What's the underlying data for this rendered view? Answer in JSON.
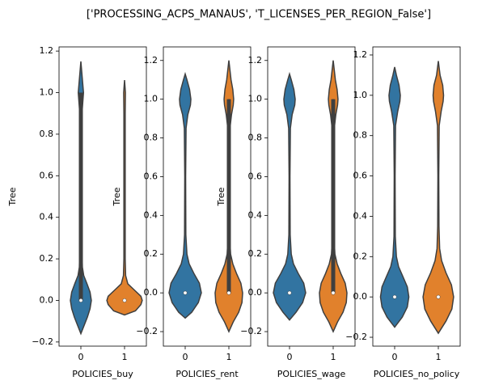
{
  "title": "['PROCESSING_ACPS_MANAUS', 'T_LICENSES_PER_REGION_False']",
  "chart_data": [
    {
      "type": "violin",
      "xlabel": "POLICIES_buy",
      "ylabel": "Tree",
      "categories": [
        "0",
        "1"
      ],
      "ylim": [
        -0.22,
        1.22
      ],
      "yticks": [
        {
          "value": -0.2,
          "label": "−0.2"
        },
        {
          "value": 0,
          "label": "0.0"
        },
        0.2,
        0.4,
        0.6,
        0.8,
        {
          "value": 1,
          "label": "1.0"
        },
        1.2
      ],
      "violins": [
        {
          "color": "#3274a1",
          "median": 0,
          "q1": 0,
          "q3": 1,
          "whisker": [
            0,
            1
          ],
          "y": [
            -0.16,
            -0.12,
            -0.08,
            -0.04,
            0,
            0.04,
            0.08,
            0.12,
            0.16,
            0.25,
            0.5,
            0.9,
            1.0,
            1.05,
            1.1,
            1.15
          ],
          "width": [
            0,
            0.15,
            0.3,
            0.42,
            0.48,
            0.42,
            0.28,
            0.13,
            0.07,
            0.05,
            0.05,
            0.05,
            0.12,
            0.08,
            0.04,
            0
          ]
        },
        {
          "color": "#e1812c",
          "median": 0,
          "q1": 0,
          "q3": 0,
          "whisker": [
            0,
            0
          ],
          "y": [
            -0.07,
            -0.05,
            -0.02,
            0,
            0.02,
            0.05,
            0.08,
            0.12,
            0.2,
            0.5,
            0.9,
            1.0,
            1.06
          ],
          "width": [
            0,
            0.5,
            0.75,
            0.81,
            0.75,
            0.45,
            0.15,
            0.05,
            0.03,
            0.03,
            0.03,
            0.04,
            0
          ]
        }
      ]
    },
    {
      "type": "violin",
      "xlabel": "POLICIES_rent",
      "ylabel": "Tree",
      "categories": [
        "0",
        "1"
      ],
      "ylim": [
        -0.275,
        1.27
      ],
      "yticks": [
        {
          "value": -0.2,
          "label": "−0.2"
        },
        {
          "value": 0,
          "label": "0.0"
        },
        0.2,
        0.4,
        0.6,
        0.8,
        {
          "value": 1,
          "label": "1.0"
        },
        1.2
      ],
      "violins": [
        {
          "color": "#3274a1",
          "median": 0,
          "q1": 0,
          "q3": 0,
          "whisker": [
            0,
            0
          ],
          "y": [
            -0.13,
            -0.1,
            -0.05,
            0,
            0.05,
            0.1,
            0.15,
            0.2,
            0.3,
            0.6,
            0.85,
            0.92,
            0.97,
            1.0,
            1.05,
            1.1,
            1.13
          ],
          "width": [
            0,
            0.3,
            0.6,
            0.74,
            0.65,
            0.4,
            0.18,
            0.08,
            0.03,
            0.02,
            0.04,
            0.12,
            0.24,
            0.26,
            0.2,
            0.08,
            0
          ]
        },
        {
          "color": "#e1812c",
          "median": 0,
          "q1": 0,
          "q3": 1,
          "whisker": [
            0,
            1
          ],
          "y": [
            -0.2,
            -0.15,
            -0.1,
            -0.05,
            0,
            0.05,
            0.1,
            0.15,
            0.2,
            0.3,
            0.6,
            0.85,
            0.92,
            0.97,
            1.0,
            1.05,
            1.1,
            1.2
          ],
          "width": [
            0,
            0.2,
            0.45,
            0.6,
            0.63,
            0.55,
            0.35,
            0.18,
            0.08,
            0.03,
            0.03,
            0.05,
            0.12,
            0.2,
            0.22,
            0.18,
            0.1,
            0
          ]
        }
      ]
    },
    {
      "type": "violin",
      "xlabel": "POLICIES_wage",
      "ylabel": "Tree",
      "categories": [
        "0",
        "1"
      ],
      "ylim": [
        -0.275,
        1.27
      ],
      "yticks": [
        {
          "value": -0.2,
          "label": "−0.2"
        },
        {
          "value": 0,
          "label": "0.0"
        },
        0.2,
        0.4,
        0.6,
        0.8,
        {
          "value": 1,
          "label": "1.0"
        },
        1.2
      ],
      "violins": [
        {
          "color": "#3274a1",
          "median": 0,
          "q1": 0,
          "q3": 0,
          "whisker": [
            0,
            0
          ],
          "y": [
            -0.14,
            -0.1,
            -0.05,
            0,
            0.05,
            0.1,
            0.15,
            0.2,
            0.3,
            0.6,
            0.85,
            0.92,
            0.97,
            1.0,
            1.05,
            1.1,
            1.13
          ],
          "width": [
            0,
            0.3,
            0.6,
            0.74,
            0.65,
            0.4,
            0.18,
            0.08,
            0.03,
            0.02,
            0.04,
            0.12,
            0.24,
            0.26,
            0.2,
            0.08,
            0
          ]
        },
        {
          "color": "#e1812c",
          "median": 0,
          "q1": 0,
          "q3": 1,
          "whisker": [
            0,
            1
          ],
          "y": [
            -0.2,
            -0.15,
            -0.1,
            -0.05,
            0,
            0.05,
            0.1,
            0.15,
            0.2,
            0.3,
            0.6,
            0.85,
            0.92,
            0.97,
            1.0,
            1.05,
            1.1,
            1.2
          ],
          "width": [
            0,
            0.2,
            0.45,
            0.6,
            0.63,
            0.55,
            0.35,
            0.18,
            0.08,
            0.03,
            0.03,
            0.05,
            0.12,
            0.2,
            0.22,
            0.18,
            0.1,
            0
          ]
        }
      ]
    },
    {
      "type": "violin",
      "xlabel": "POLICIES_no_policy",
      "categories": [
        "0",
        "1"
      ],
      "ylim": [
        -0.244,
        1.24
      ],
      "yticks": [
        {
          "value": -0.2,
          "label": "−0.2"
        },
        {
          "value": 0,
          "label": "0.0"
        },
        0.2,
        0.4,
        0.6,
        0.8,
        {
          "value": 1,
          "label": "1.0"
        },
        1.2
      ],
      "violins": [
        {
          "color": "#3274a1",
          "median": 0,
          "q1": 0,
          "q3": 0,
          "whisker": [
            0,
            0
          ],
          "y": [
            -0.15,
            -0.1,
            -0.05,
            0,
            0.05,
            0.1,
            0.15,
            0.2,
            0.3,
            0.6,
            0.85,
            0.92,
            0.97,
            1.0,
            1.05,
            1.1,
            1.14
          ],
          "width": [
            0,
            0.35,
            0.58,
            0.65,
            0.58,
            0.38,
            0.18,
            0.08,
            0.03,
            0.02,
            0.04,
            0.14,
            0.24,
            0.26,
            0.2,
            0.08,
            0
          ]
        },
        {
          "color": "#e1812c",
          "median": 0,
          "q1": 0,
          "q3": 0,
          "whisker": [
            0,
            0
          ],
          "y": [
            -0.18,
            -0.12,
            -0.06,
            0,
            0.06,
            0.12,
            0.18,
            0.24,
            0.35,
            0.6,
            0.85,
            0.92,
            0.97,
            1.0,
            1.05,
            1.1,
            1.17
          ],
          "width": [
            0,
            0.35,
            0.62,
            0.7,
            0.6,
            0.35,
            0.15,
            0.06,
            0.03,
            0.02,
            0.04,
            0.13,
            0.22,
            0.24,
            0.2,
            0.08,
            0
          ]
        }
      ]
    }
  ]
}
